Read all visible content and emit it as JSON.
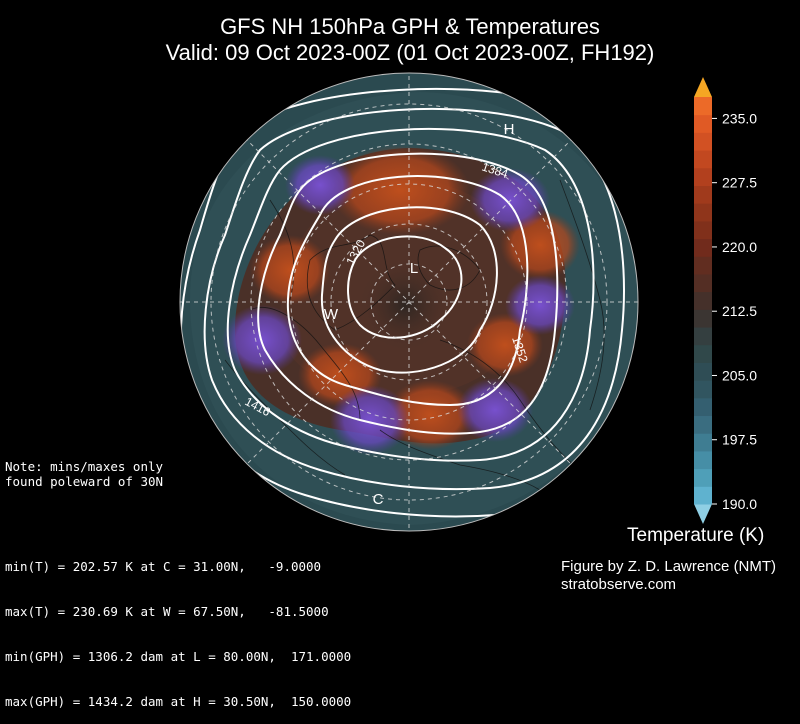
{
  "title": {
    "line1": "GFS NH 150hPa GPH & Temperatures",
    "line2": "Valid: 09 Oct 2023-00Z  (01 Oct 2023-00Z, FH192)"
  },
  "map": {
    "contour_labels": [
      "1384",
      "1320",
      "1352",
      "1416"
    ],
    "markers": {
      "low": "L",
      "high": "H",
      "warm": "W",
      "cold": "C"
    }
  },
  "note": {
    "line1": "Note: mins/maxes only",
    "line2": "found poleward of 30N"
  },
  "stats": [
    "min(T) = 202.57 K at C = 31.00N,   -9.0000",
    "max(T) = 230.69 K at W = 67.50N,   -81.5000",
    "min(GPH) = 1306.2 dam at L = 80.00N,  171.0000",
    "max(GPH) = 1434.2 dam at H = 30.50N,  150.0000"
  ],
  "credit": {
    "line1": "Figure by Z. D. Lawrence (NMT)",
    "line2": "stratobserve.com"
  },
  "colorbar": {
    "title": "Temperature (K)",
    "ticks": [
      {
        "value": 235.0,
        "label": "235.0"
      },
      {
        "value": 227.5,
        "label": "227.5"
      },
      {
        "value": 220.0,
        "label": "220.0"
      },
      {
        "value": 212.5,
        "label": "212.5"
      },
      {
        "value": 205.0,
        "label": "205.0"
      },
      {
        "value": 197.5,
        "label": "197.5"
      },
      {
        "value": 190.0,
        "label": "190.0"
      }
    ],
    "min": 190.0,
    "max": 237.5,
    "colors": [
      "#5fb2cf",
      "#4f9fb8",
      "#468ea6",
      "#3f7d92",
      "#3a6d80",
      "#345f70",
      "#315560",
      "#2f4d55",
      "#30484a",
      "#343f40",
      "#3b3532",
      "#45302a",
      "#542e24",
      "#612d20",
      "#712b1c",
      "#80301b",
      "#8f351b",
      "#a03a1c",
      "#b2401e",
      "#c24820",
      "#d25123",
      "#e05a25",
      "#ec6a28"
    ],
    "over_color": "#f5a623",
    "under_color": "#8fcfe4"
  }
}
